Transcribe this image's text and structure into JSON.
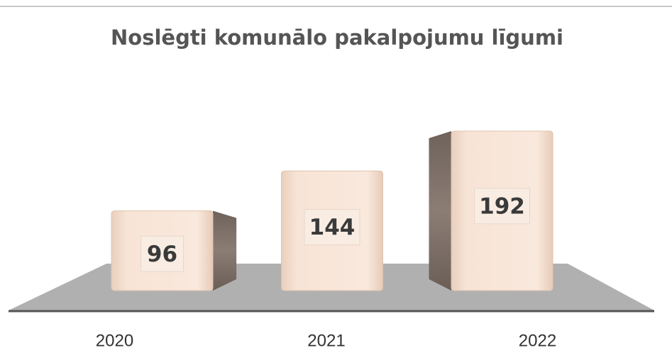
{
  "chart_data": {
    "type": "bar3d",
    "title": "Noslēgti komunālo pakalpojumu līgumi",
    "categories": [
      "2020",
      "2021",
      "2022"
    ],
    "values": [
      96,
      144,
      192
    ],
    "color": "#f3dccb"
  }
}
